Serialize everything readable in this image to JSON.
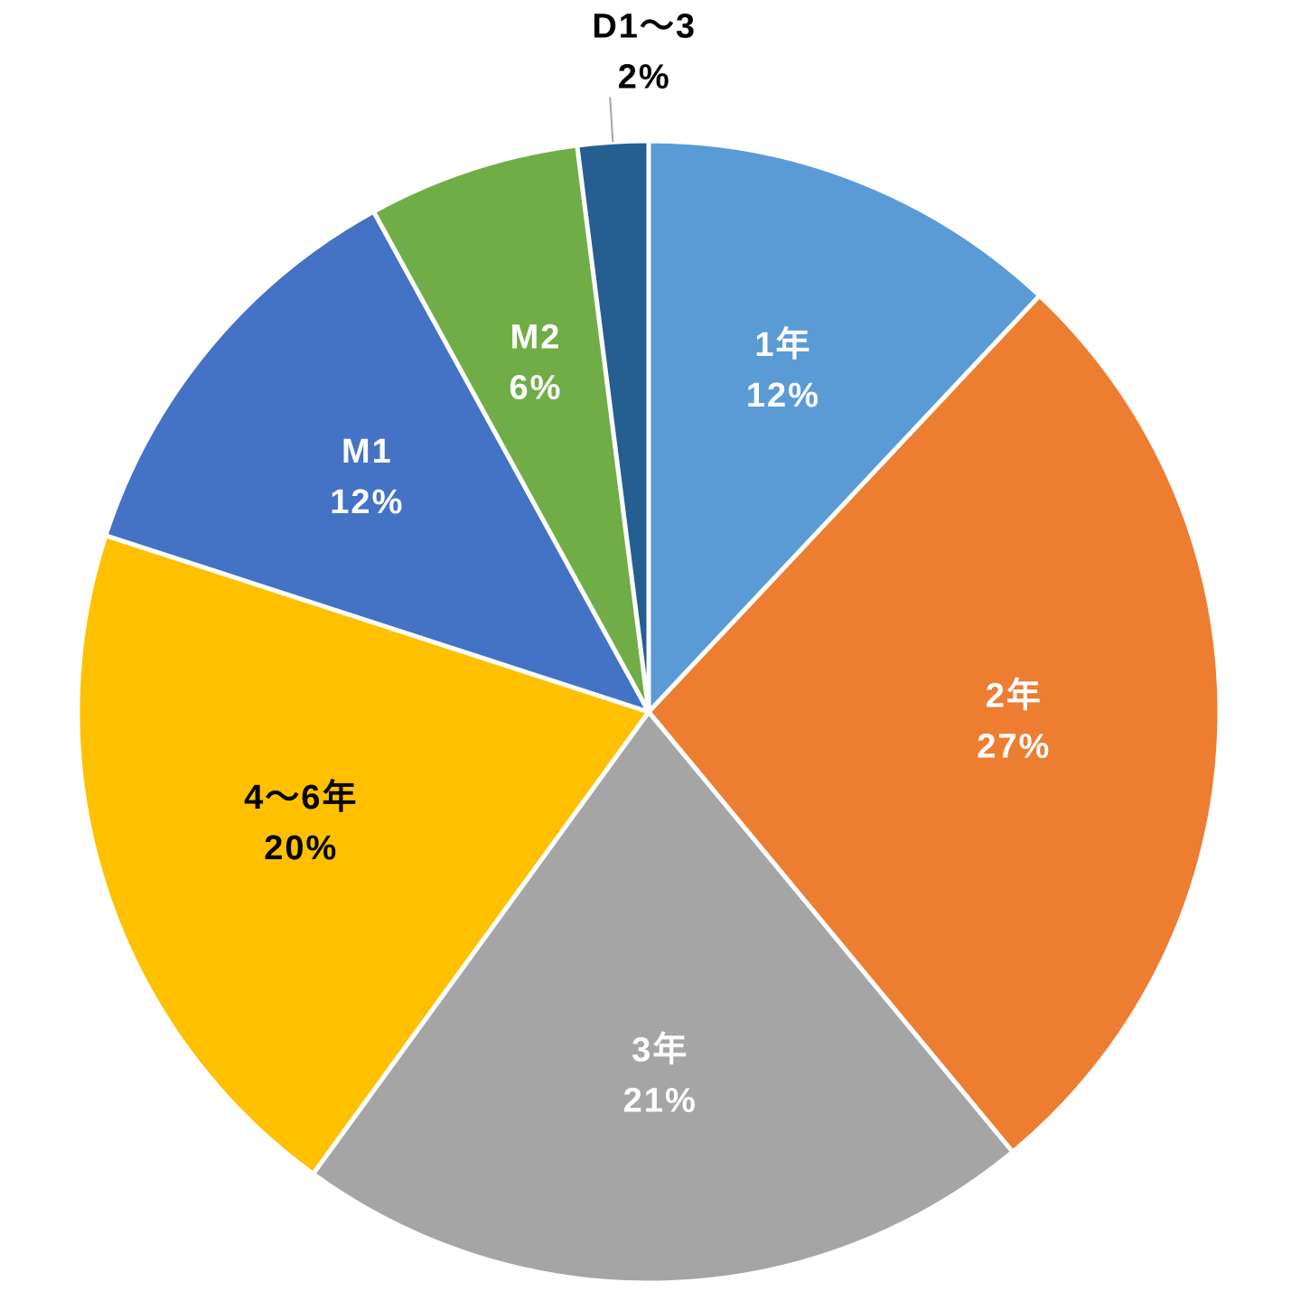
{
  "chart_data": {
    "type": "pie",
    "categories": [
      "1年",
      "2年",
      "3年",
      "4～6年",
      "M1",
      "M2",
      "D1～3"
    ],
    "values": [
      12,
      27,
      21,
      20,
      12,
      6,
      2
    ],
    "value_labels": [
      "12%",
      "27%",
      "21%",
      "20%",
      "12%",
      "6%",
      "2%"
    ],
    "colors": [
      "#5b9bd5",
      "#ed7d31",
      "#a5a5a5",
      "#ffc000",
      "#4472c4",
      "#70ad47",
      "#255e91"
    ]
  }
}
